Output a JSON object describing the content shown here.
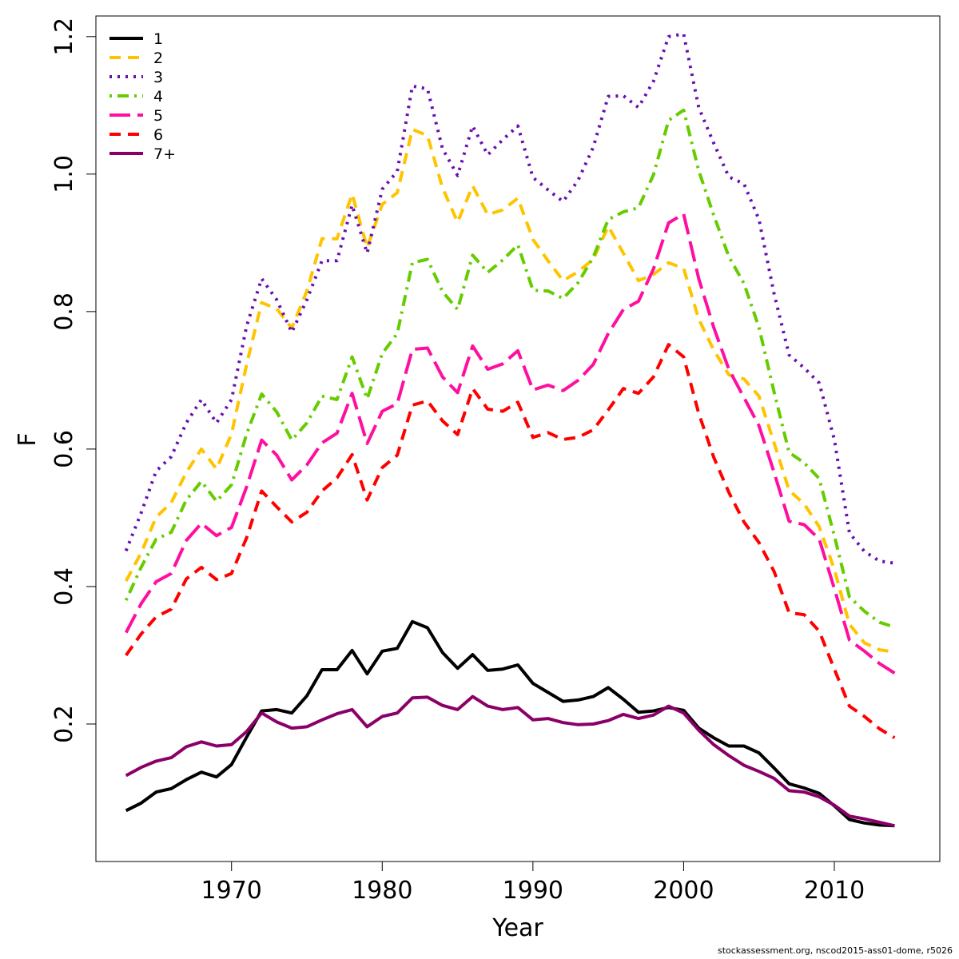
{
  "chart_data": {
    "type": "line",
    "xlabel": "Year",
    "ylabel": "F",
    "xlim": [
      1961,
      2017
    ],
    "ylim": [
      0.0,
      1.23
    ],
    "xticks": [
      1970,
      1980,
      1990,
      2000,
      2010
    ],
    "yticks": [
      0.2,
      0.4,
      0.6,
      0.8,
      1.0,
      1.2
    ],
    "ytick_labels": [
      "0.2",
      "0.4",
      "0.6",
      "0.8",
      "1.0",
      "1.2"
    ],
    "grid": false,
    "legend_position": "top-left",
    "x": [
      1963,
      1964,
      1965,
      1966,
      1967,
      1968,
      1969,
      1970,
      1971,
      1972,
      1973,
      1974,
      1975,
      1976,
      1977,
      1978,
      1979,
      1980,
      1981,
      1982,
      1983,
      1984,
      1985,
      1986,
      1987,
      1988,
      1989,
      1990,
      1991,
      1992,
      1993,
      1994,
      1995,
      1996,
      1997,
      1998,
      1999,
      2000,
      2001,
      2002,
      2003,
      2004,
      2005,
      2006,
      2007,
      2008,
      2009,
      2010,
      2011,
      2012,
      2013,
      2014
    ],
    "series": [
      {
        "name": "1",
        "color": "#000000",
        "dash": "solid",
        "values": [
          0.074,
          0.085,
          0.101,
          0.106,
          0.119,
          0.13,
          0.123,
          0.141,
          0.181,
          0.219,
          0.221,
          0.216,
          0.241,
          0.279,
          0.279,
          0.307,
          0.273,
          0.306,
          0.31,
          0.349,
          0.34,
          0.304,
          0.281,
          0.301,
          0.278,
          0.28,
          0.286,
          0.259,
          0.246,
          0.233,
          0.235,
          0.24,
          0.253,
          0.236,
          0.217,
          0.219,
          0.224,
          0.22,
          0.194,
          0.18,
          0.168,
          0.168,
          0.158,
          0.136,
          0.113,
          0.107,
          0.099,
          0.081,
          0.061,
          0.056,
          0.053,
          0.052
        ]
      },
      {
        "name": "2",
        "color": "#FFC400",
        "dash": "dashed",
        "values": [
          0.408,
          0.449,
          0.501,
          0.522,
          0.566,
          0.6,
          0.571,
          0.622,
          0.723,
          0.813,
          0.804,
          0.776,
          0.83,
          0.906,
          0.906,
          0.971,
          0.893,
          0.956,
          0.973,
          1.065,
          1.056,
          0.98,
          0.93,
          0.983,
          0.941,
          0.948,
          0.965,
          0.905,
          0.874,
          0.845,
          0.858,
          0.876,
          0.924,
          0.885,
          0.845,
          0.854,
          0.871,
          0.863,
          0.789,
          0.744,
          0.708,
          0.702,
          0.677,
          0.609,
          0.54,
          0.52,
          0.487,
          0.425,
          0.345,
          0.318,
          0.308,
          0.305
        ]
      },
      {
        "name": "3",
        "color": "#6A0DAD",
        "dash": "dotted",
        "values": [
          0.452,
          0.507,
          0.568,
          0.589,
          0.638,
          0.672,
          0.638,
          0.672,
          0.779,
          0.848,
          0.817,
          0.77,
          0.817,
          0.874,
          0.874,
          0.955,
          0.885,
          0.978,
          1.004,
          1.128,
          1.124,
          1.037,
          0.998,
          1.07,
          1.028,
          1.05,
          1.07,
          0.995,
          0.977,
          0.96,
          0.991,
          1.039,
          1.113,
          1.114,
          1.097,
          1.135,
          1.2,
          1.204,
          1.097,
          1.045,
          0.996,
          0.986,
          0.934,
          0.826,
          0.737,
          0.718,
          0.696,
          0.614,
          0.478,
          0.451,
          0.437,
          0.434
        ]
      },
      {
        "name": "4",
        "color": "#66CC00",
        "dash": "dotdash",
        "values": [
          0.38,
          0.428,
          0.469,
          0.479,
          0.526,
          0.553,
          0.524,
          0.548,
          0.622,
          0.68,
          0.654,
          0.613,
          0.638,
          0.677,
          0.672,
          0.734,
          0.673,
          0.739,
          0.768,
          0.871,
          0.876,
          0.829,
          0.803,
          0.882,
          0.857,
          0.875,
          0.897,
          0.831,
          0.83,
          0.819,
          0.842,
          0.879,
          0.934,
          0.945,
          0.951,
          0.999,
          1.078,
          1.093,
          1.005,
          0.94,
          0.88,
          0.841,
          0.777,
          0.683,
          0.595,
          0.58,
          0.557,
          0.474,
          0.385,
          0.364,
          0.348,
          0.341
        ]
      },
      {
        "name": "5",
        "color": "#FF0FA0",
        "dash": "longdash",
        "values": [
          0.333,
          0.375,
          0.407,
          0.419,
          0.467,
          0.492,
          0.474,
          0.486,
          0.545,
          0.613,
          0.591,
          0.555,
          0.577,
          0.609,
          0.623,
          0.681,
          0.608,
          0.655,
          0.666,
          0.745,
          0.747,
          0.705,
          0.682,
          0.75,
          0.716,
          0.724,
          0.743,
          0.686,
          0.693,
          0.685,
          0.7,
          0.723,
          0.768,
          0.803,
          0.815,
          0.862,
          0.929,
          0.942,
          0.848,
          0.777,
          0.716,
          0.675,
          0.634,
          0.566,
          0.495,
          0.49,
          0.469,
          0.397,
          0.322,
          0.306,
          0.288,
          0.274
        ]
      },
      {
        "name": "6",
        "color": "#FF0000",
        "dash": "dashed",
        "values": [
          0.3,
          0.331,
          0.356,
          0.367,
          0.411,
          0.428,
          0.41,
          0.419,
          0.471,
          0.539,
          0.516,
          0.494,
          0.508,
          0.539,
          0.558,
          0.592,
          0.526,
          0.573,
          0.591,
          0.664,
          0.67,
          0.641,
          0.621,
          0.688,
          0.658,
          0.655,
          0.668,
          0.617,
          0.624,
          0.614,
          0.617,
          0.628,
          0.657,
          0.688,
          0.681,
          0.705,
          0.752,
          0.734,
          0.652,
          0.588,
          0.537,
          0.494,
          0.464,
          0.422,
          0.362,
          0.359,
          0.335,
          0.28,
          0.226,
          0.211,
          0.193,
          0.18
        ]
      },
      {
        "name": "7+",
        "color": "#8B0068",
        "dash": "solid",
        "values": [
          0.125,
          0.137,
          0.146,
          0.151,
          0.167,
          0.174,
          0.168,
          0.17,
          0.189,
          0.216,
          0.203,
          0.194,
          0.196,
          0.206,
          0.215,
          0.221,
          0.196,
          0.211,
          0.216,
          0.238,
          0.239,
          0.227,
          0.221,
          0.24,
          0.226,
          0.221,
          0.224,
          0.206,
          0.208,
          0.202,
          0.199,
          0.2,
          0.205,
          0.214,
          0.208,
          0.213,
          0.226,
          0.216,
          0.191,
          0.17,
          0.154,
          0.14,
          0.131,
          0.121,
          0.103,
          0.101,
          0.094,
          0.082,
          0.066,
          0.062,
          0.057,
          0.052
        ]
      }
    ]
  },
  "footer": "stockassessment.org, nscod2015-ass01-dome, r5026"
}
